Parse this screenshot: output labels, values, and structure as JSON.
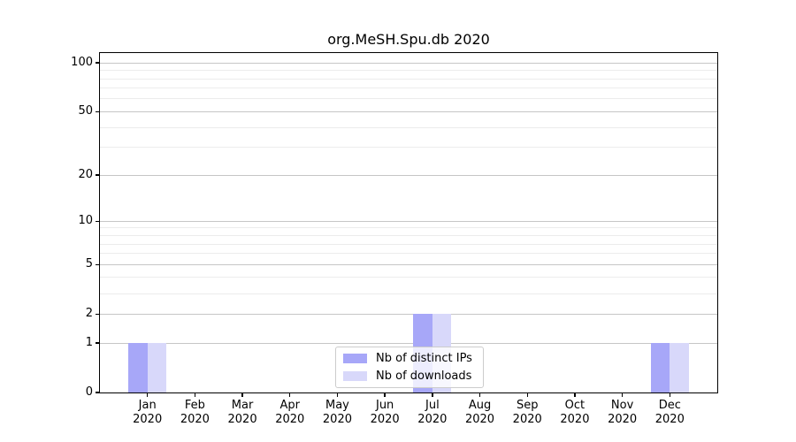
{
  "chart_data": {
    "type": "bar",
    "title": "org.MeSH.Spu.db 2020",
    "categories": [
      "Jan",
      "Feb",
      "Mar",
      "Apr",
      "May",
      "Jun",
      "Jul",
      "Aug",
      "Sep",
      "Oct",
      "Nov",
      "Dec"
    ],
    "xtick_year": "2020",
    "series": [
      {
        "name": "Nb of distinct IPs",
        "color": "#a7a7f8",
        "values": [
          1,
          0,
          0,
          0,
          0,
          0,
          2,
          0,
          0,
          0,
          0,
          1
        ]
      },
      {
        "name": "Nb of downloads",
        "color": "#d8d8fa",
        "values": [
          1,
          0,
          0,
          0,
          0,
          0,
          2,
          0,
          0,
          0,
          0,
          1
        ]
      }
    ],
    "yscale": "log1p",
    "ylim": [
      0,
      115
    ],
    "yticks": [
      0,
      1,
      2,
      5,
      10,
      20,
      50,
      100
    ],
    "minor_yticks": [
      3,
      4,
      6,
      7,
      8,
      9,
      30,
      40,
      60,
      70,
      80,
      90
    ],
    "grid": true,
    "legend_position": "lower center",
    "colors": {
      "major_grid": "#c6c6c6",
      "minor_grid": "#ececec",
      "axis": "#000000",
      "background": "#ffffff"
    }
  }
}
